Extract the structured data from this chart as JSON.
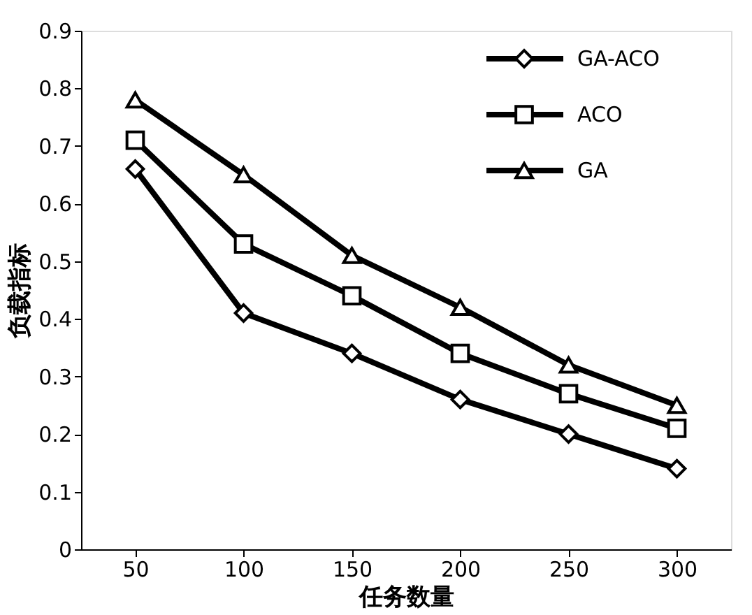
{
  "chart_data": {
    "type": "line",
    "xlabel": "任务数量",
    "ylabel": "负载指标",
    "categories": [
      "50",
      "100",
      "150",
      "200",
      "250",
      "300"
    ],
    "series": [
      {
        "name": "GA-ACO",
        "color": "#000000",
        "marker": "diamond",
        "values": [
          0.66,
          0.41,
          0.34,
          0.26,
          0.2,
          0.14
        ]
      },
      {
        "name": "ACO",
        "color": "#000000",
        "marker": "square",
        "values": [
          0.71,
          0.53,
          0.44,
          0.34,
          0.27,
          0.21
        ]
      },
      {
        "name": "GA",
        "color": "#000000",
        "marker": "triangle",
        "values": [
          0.78,
          0.65,
          0.51,
          0.42,
          0.32,
          0.25
        ]
      }
    ],
    "ylim": [
      0,
      0.9
    ],
    "yticks": [
      0,
      0.1,
      0.2,
      0.3,
      0.4,
      0.5,
      0.6,
      0.7,
      0.8,
      0.9
    ],
    "grid": false,
    "legend": "top right",
    "line_style": "solid"
  }
}
